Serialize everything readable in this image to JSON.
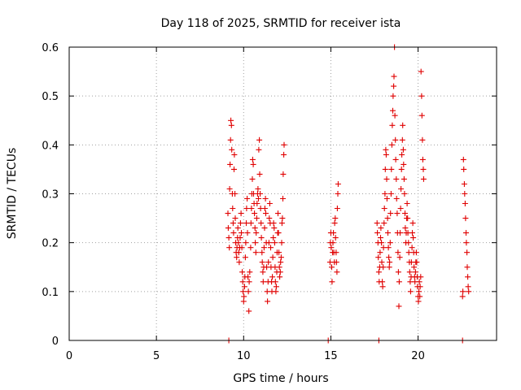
{
  "chart_data": {
    "type": "scatter",
    "title": "Day 118 of 2025, SRMTID for receiver ista",
    "xlabel": "GPS time / hours",
    "ylabel": "SRMTID / TECUs",
    "xlim": [
      0,
      24.5
    ],
    "ylim": [
      0,
      0.6
    ],
    "xticks": [
      0,
      5,
      10,
      15,
      20
    ],
    "yticks": [
      0,
      0.1,
      0.2,
      0.3,
      0.4,
      0.5,
      0.6
    ],
    "grid": true,
    "marker": "+",
    "color": "#e00000",
    "series": [
      {
        "name": "SRMTID",
        "points": [
          [
            9.15,
            0.0
          ],
          [
            14.85,
            0.0
          ],
          [
            17.75,
            0.0
          ],
          [
            22.55,
            0.0
          ],
          [
            9.1,
            0.26
          ],
          [
            9.12,
            0.23
          ],
          [
            9.15,
            0.21
          ],
          [
            9.18,
            0.19
          ],
          [
            9.2,
            0.31
          ],
          [
            9.22,
            0.36
          ],
          [
            9.25,
            0.41
          ],
          [
            9.27,
            0.45
          ],
          [
            9.3,
            0.44
          ],
          [
            9.32,
            0.39
          ],
          [
            9.35,
            0.3
          ],
          [
            9.37,
            0.27
          ],
          [
            9.4,
            0.24
          ],
          [
            9.42,
            0.22
          ],
          [
            9.45,
            0.35
          ],
          [
            9.47,
            0.38
          ],
          [
            9.5,
            0.3
          ],
          [
            9.52,
            0.25
          ],
          [
            9.55,
            0.2
          ],
          [
            9.57,
            0.18
          ],
          [
            9.6,
            0.17
          ],
          [
            9.62,
            0.19
          ],
          [
            9.65,
            0.21
          ],
          [
            9.67,
            0.23
          ],
          [
            9.7,
            0.2
          ],
          [
            9.72,
            0.18
          ],
          [
            9.75,
            0.16
          ],
          [
            9.77,
            0.19
          ],
          [
            9.8,
            0.21
          ],
          [
            9.82,
            0.24
          ],
          [
            9.85,
            0.26
          ],
          [
            9.87,
            0.22
          ],
          [
            9.9,
            0.19
          ],
          [
            9.92,
            0.14
          ],
          [
            9.95,
            0.12
          ],
          [
            9.97,
            0.1
          ],
          [
            10.0,
            0.08
          ],
          [
            10.02,
            0.09
          ],
          [
            10.05,
            0.11
          ],
          [
            10.07,
            0.13
          ],
          [
            10.1,
            0.17
          ],
          [
            10.12,
            0.2
          ],
          [
            10.15,
            0.24
          ],
          [
            10.17,
            0.27
          ],
          [
            10.2,
            0.29
          ],
          [
            10.22,
            0.22
          ],
          [
            10.25,
            0.13
          ],
          [
            10.27,
            0.1
          ],
          [
            10.3,
            0.06
          ],
          [
            10.32,
            0.12
          ],
          [
            10.35,
            0.14
          ],
          [
            10.4,
            0.19
          ],
          [
            10.42,
            0.24
          ],
          [
            10.45,
            0.27
          ],
          [
            10.47,
            0.3
          ],
          [
            10.5,
            0.33
          ],
          [
            10.52,
            0.37
          ],
          [
            10.55,
            0.36
          ],
          [
            10.57,
            0.3
          ],
          [
            10.6,
            0.28
          ],
          [
            10.62,
            0.26
          ],
          [
            10.65,
            0.23
          ],
          [
            10.67,
            0.2
          ],
          [
            10.7,
            0.18
          ],
          [
            10.72,
            0.22
          ],
          [
            10.75,
            0.25
          ],
          [
            10.77,
            0.28
          ],
          [
            10.8,
            0.3
          ],
          [
            10.82,
            0.31
          ],
          [
            10.85,
            0.29
          ],
          [
            10.87,
            0.39
          ],
          [
            10.9,
            0.41
          ],
          [
            10.92,
            0.34
          ],
          [
            10.95,
            0.3
          ],
          [
            10.97,
            0.27
          ],
          [
            11.0,
            0.24
          ],
          [
            11.02,
            0.21
          ],
          [
            11.05,
            0.18
          ],
          [
            11.07,
            0.16
          ],
          [
            11.1,
            0.14
          ],
          [
            11.12,
            0.12
          ],
          [
            11.15,
            0.15
          ],
          [
            11.17,
            0.19
          ],
          [
            11.2,
            0.23
          ],
          [
            11.22,
            0.27
          ],
          [
            11.25,
            0.29
          ],
          [
            11.27,
            0.26
          ],
          [
            11.3,
            0.2
          ],
          [
            11.32,
            0.15
          ],
          [
            11.35,
            0.1
          ],
          [
            11.37,
            0.08
          ],
          [
            11.4,
            0.12
          ],
          [
            11.42,
            0.16
          ],
          [
            11.45,
            0.2
          ],
          [
            11.47,
            0.25
          ],
          [
            11.5,
            0.28
          ],
          [
            11.52,
            0.24
          ],
          [
            11.55,
            0.19
          ],
          [
            11.57,
            0.15
          ],
          [
            11.6,
            0.12
          ],
          [
            11.62,
            0.1
          ],
          [
            11.65,
            0.13
          ],
          [
            11.67,
            0.17
          ],
          [
            11.7,
            0.21
          ],
          [
            11.72,
            0.24
          ],
          [
            11.75,
            0.23
          ],
          [
            11.78,
            0.2
          ],
          [
            11.8,
            0.15
          ],
          [
            11.82,
            0.12
          ],
          [
            11.85,
            0.1
          ],
          [
            11.87,
            0.11
          ],
          [
            11.9,
            0.14
          ],
          [
            11.92,
            0.18
          ],
          [
            11.95,
            0.22
          ],
          [
            11.97,
            0.26
          ],
          [
            12.0,
            0.22
          ],
          [
            12.02,
            0.18
          ],
          [
            12.05,
            0.15
          ],
          [
            12.07,
            0.13
          ],
          [
            12.1,
            0.14
          ],
          [
            12.12,
            0.16
          ],
          [
            12.15,
            0.17
          ],
          [
            12.18,
            0.2
          ],
          [
            12.2,
            0.24
          ],
          [
            12.22,
            0.25
          ],
          [
            12.25,
            0.29
          ],
          [
            12.27,
            0.34
          ],
          [
            12.3,
            0.38
          ],
          [
            12.32,
            0.4
          ],
          [
            14.95,
            0.16
          ],
          [
            14.97,
            0.2
          ],
          [
            15.0,
            0.22
          ],
          [
            15.02,
            0.19
          ],
          [
            15.05,
            0.15
          ],
          [
            15.07,
            0.12
          ],
          [
            15.1,
            0.18
          ],
          [
            15.12,
            0.2
          ],
          [
            15.15,
            0.22
          ],
          [
            15.17,
            0.18
          ],
          [
            15.2,
            0.16
          ],
          [
            15.22,
            0.24
          ],
          [
            15.25,
            0.25
          ],
          [
            15.27,
            0.21
          ],
          [
            15.3,
            0.18
          ],
          [
            15.32,
            0.16
          ],
          [
            15.35,
            0.14
          ],
          [
            15.37,
            0.27
          ],
          [
            15.4,
            0.3
          ],
          [
            15.42,
            0.32
          ],
          [
            17.65,
            0.24
          ],
          [
            17.67,
            0.22
          ],
          [
            17.7,
            0.2
          ],
          [
            17.72,
            0.17
          ],
          [
            17.75,
            0.14
          ],
          [
            17.77,
            0.12
          ],
          [
            17.8,
            0.15
          ],
          [
            17.82,
            0.18
          ],
          [
            17.85,
            0.21
          ],
          [
            17.87,
            0.23
          ],
          [
            17.9,
            0.2
          ],
          [
            17.92,
            0.16
          ],
          [
            17.95,
            0.12
          ],
          [
            17.97,
            0.11
          ],
          [
            18.0,
            0.15
          ],
          [
            18.02,
            0.19
          ],
          [
            18.05,
            0.24
          ],
          [
            18.07,
            0.27
          ],
          [
            18.1,
            0.3
          ],
          [
            18.12,
            0.35
          ],
          [
            18.15,
            0.39
          ],
          [
            18.17,
            0.38
          ],
          [
            18.2,
            0.33
          ],
          [
            18.22,
            0.29
          ],
          [
            18.25,
            0.25
          ],
          [
            18.27,
            0.22
          ],
          [
            18.3,
            0.19
          ],
          [
            18.32,
            0.17
          ],
          [
            18.35,
            0.15
          ],
          [
            18.37,
            0.16
          ],
          [
            18.4,
            0.2
          ],
          [
            18.42,
            0.26
          ],
          [
            18.45,
            0.3
          ],
          [
            18.47,
            0.35
          ],
          [
            18.5,
            0.4
          ],
          [
            18.52,
            0.44
          ],
          [
            18.55,
            0.47
          ],
          [
            18.57,
            0.5
          ],
          [
            18.6,
            0.52
          ],
          [
            18.62,
            0.54
          ],
          [
            18.65,
            0.6
          ],
          [
            18.67,
            0.46
          ],
          [
            18.7,
            0.41
          ],
          [
            18.72,
            0.37
          ],
          [
            18.75,
            0.33
          ],
          [
            18.77,
            0.29
          ],
          [
            18.8,
            0.26
          ],
          [
            18.82,
            0.22
          ],
          [
            18.85,
            0.18
          ],
          [
            18.87,
            0.14
          ],
          [
            18.9,
            0.07
          ],
          [
            18.92,
            0.12
          ],
          [
            18.95,
            0.17
          ],
          [
            18.97,
            0.22
          ],
          [
            19.0,
            0.27
          ],
          [
            19.02,
            0.31
          ],
          [
            19.05,
            0.35
          ],
          [
            19.07,
            0.38
          ],
          [
            19.1,
            0.41
          ],
          [
            19.12,
            0.44
          ],
          [
            19.15,
            0.39
          ],
          [
            19.17,
            0.36
          ],
          [
            19.2,
            0.33
          ],
          [
            19.22,
            0.3
          ],
          [
            19.25,
            0.26
          ],
          [
            19.27,
            0.23
          ],
          [
            19.3,
            0.2
          ],
          [
            19.32,
            0.22
          ],
          [
            19.35,
            0.25
          ],
          [
            19.37,
            0.28
          ],
          [
            19.4,
            0.25
          ],
          [
            19.42,
            0.22
          ],
          [
            19.45,
            0.2
          ],
          [
            19.47,
            0.18
          ],
          [
            19.5,
            0.16
          ],
          [
            19.52,
            0.14
          ],
          [
            19.55,
            0.12
          ],
          [
            19.57,
            0.1
          ],
          [
            19.6,
            0.13
          ],
          [
            19.62,
            0.16
          ],
          [
            19.65,
            0.19
          ],
          [
            19.67,
            0.22
          ],
          [
            19.7,
            0.24
          ],
          [
            19.72,
            0.21
          ],
          [
            19.75,
            0.18
          ],
          [
            19.77,
            0.15
          ],
          [
            19.8,
            0.13
          ],
          [
            19.82,
            0.12
          ],
          [
            19.85,
            0.14
          ],
          [
            19.87,
            0.16
          ],
          [
            19.9,
            0.18
          ],
          [
            19.92,
            0.16
          ],
          [
            19.95,
            0.13
          ],
          [
            19.97,
            0.11
          ],
          [
            20.0,
            0.09
          ],
          [
            20.02,
            0.08
          ],
          [
            20.05,
            0.1
          ],
          [
            20.07,
            0.12
          ],
          [
            20.1,
            0.09
          ],
          [
            20.12,
            0.11
          ],
          [
            20.15,
            0.13
          ],
          [
            20.17,
            0.55
          ],
          [
            20.2,
            0.5
          ],
          [
            20.22,
            0.46
          ],
          [
            20.25,
            0.41
          ],
          [
            20.27,
            0.37
          ],
          [
            20.3,
            0.35
          ],
          [
            20.32,
            0.33
          ],
          [
            22.55,
            0.09
          ],
          [
            22.57,
            0.1
          ],
          [
            22.6,
            0.37
          ],
          [
            22.62,
            0.35
          ],
          [
            22.65,
            0.32
          ],
          [
            22.67,
            0.3
          ],
          [
            22.7,
            0.28
          ],
          [
            22.72,
            0.25
          ],
          [
            22.75,
            0.22
          ],
          [
            22.77,
            0.2
          ],
          [
            22.8,
            0.18
          ],
          [
            22.82,
            0.15
          ],
          [
            22.85,
            0.13
          ],
          [
            22.87,
            0.11
          ],
          [
            22.9,
            0.1
          ]
        ]
      }
    ]
  }
}
